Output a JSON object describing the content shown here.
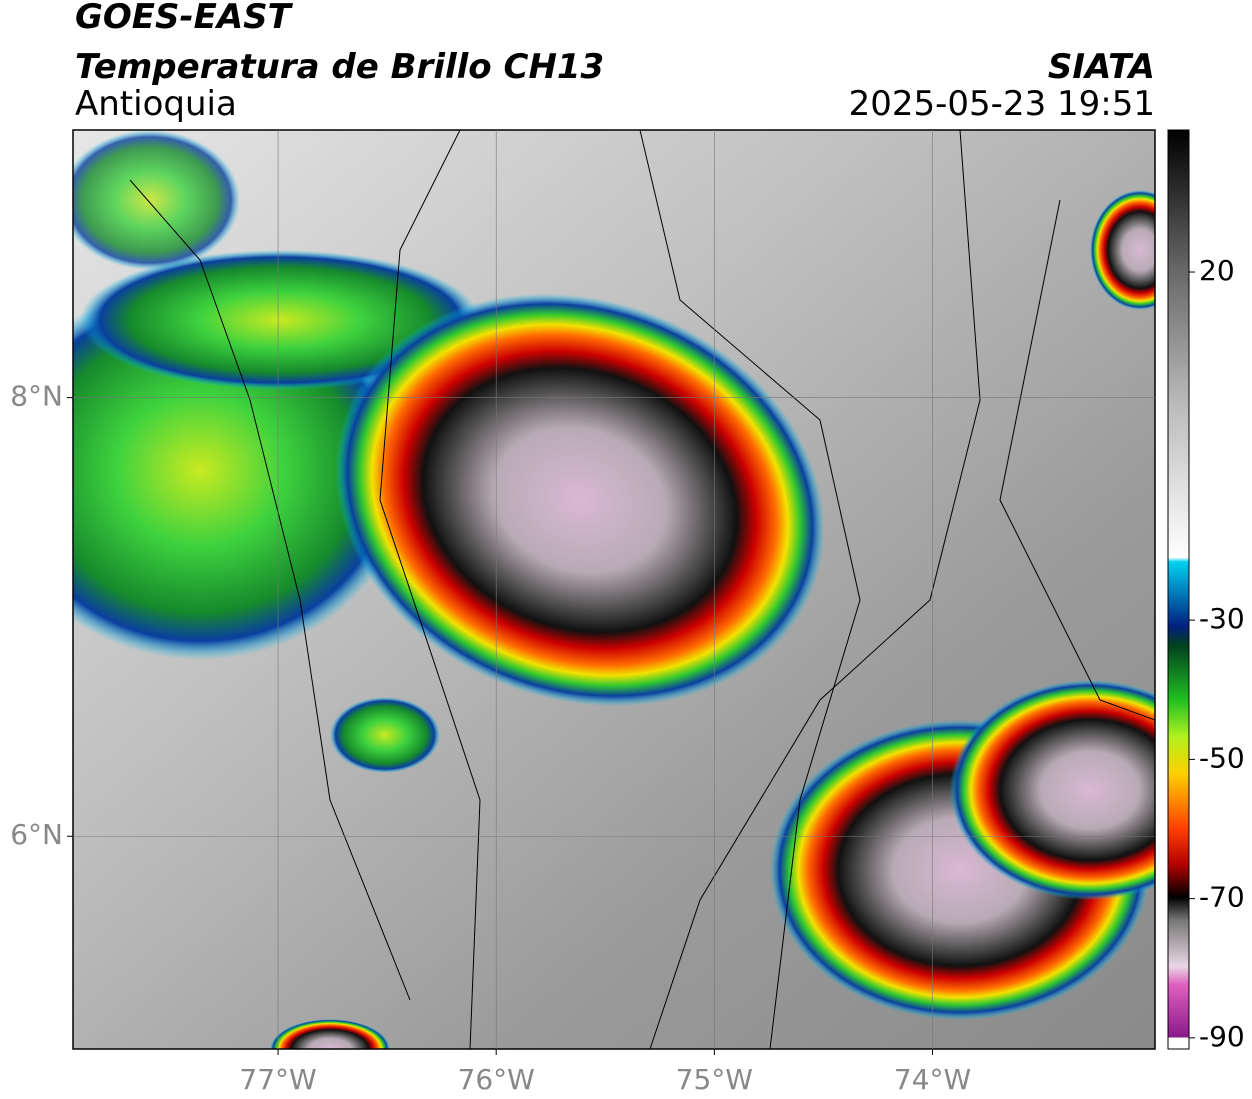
{
  "header": {
    "satellite": "GOES-EAST",
    "product": "Temperatura de Brillo CH13",
    "region": "Antioquia",
    "source": "SIATA",
    "datetime": "2025-05-23 19:51"
  },
  "map": {
    "xlim": [
      -77.94,
      -72.98
    ],
    "ylim": [
      5.03,
      9.22
    ],
    "xticks": [
      {
        "value": -77,
        "label": "77°W"
      },
      {
        "value": -76,
        "label": "76°W"
      },
      {
        "value": -75,
        "label": "75°W"
      },
      {
        "value": -74,
        "label": "74°W"
      }
    ],
    "yticks": [
      {
        "value": 6,
        "label": "6°N"
      },
      {
        "value": 8,
        "label": "8°N"
      }
    ],
    "grid": true
  },
  "colorbar": {
    "ylim": [
      -91.6,
      40.4
    ],
    "yticks": [
      20,
      -30,
      -50,
      -70,
      -90
    ]
  }
}
